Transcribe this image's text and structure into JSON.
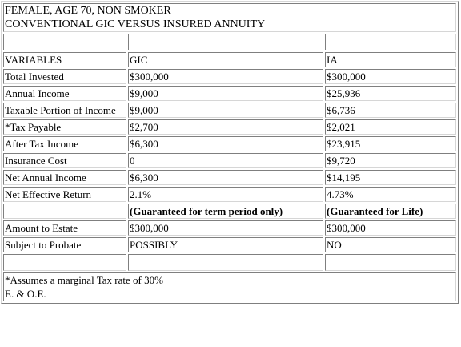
{
  "title": {
    "line1": "FEMALE, AGE 70, NON SMOKER",
    "line2": "CONVENTIONAL GIC VERSUS INSURED ANNUITY"
  },
  "header": {
    "variables": "VARIABLES",
    "gic": "GIC",
    "ia": "IA"
  },
  "rows": [
    {
      "label": "Total Invested",
      "gic": "$300,000",
      "ia": "$300,000"
    },
    {
      "label": "Annual Income",
      "gic": "$9,000",
      "ia": "$25,936"
    },
    {
      "label": "Taxable Portion of Income",
      "gic": "$9,000",
      "ia": "$6,736"
    },
    {
      "label": "*Tax Payable",
      "gic": "$2,700",
      "ia": "$2,021"
    },
    {
      "label": "After Tax Income",
      "gic": "$6,300",
      "ia": "$23,915"
    },
    {
      "label": "Insurance Cost",
      "gic": "0",
      "ia": "$9,720"
    },
    {
      "label": "Net Annual Income",
      "gic": "$6,300",
      "ia": "$14,195"
    },
    {
      "label": "Net Effective Return",
      "gic": "2.1%",
      "ia": "4.73%"
    }
  ],
  "guarantee": {
    "gic": "(Guaranteed for term period only)",
    "ia": "(Guaranteed for Life)"
  },
  "estate_rows": [
    {
      "label": "Amount to Estate",
      "gic": "$300,000",
      "ia": "$300,000"
    },
    {
      "label": "Subject to Probate",
      "gic": "POSSIBLY",
      "ia": "NO"
    }
  ],
  "footnote": {
    "line1": "*Assumes a marginal Tax rate of 30%",
    "line2": "E. & O.E."
  }
}
